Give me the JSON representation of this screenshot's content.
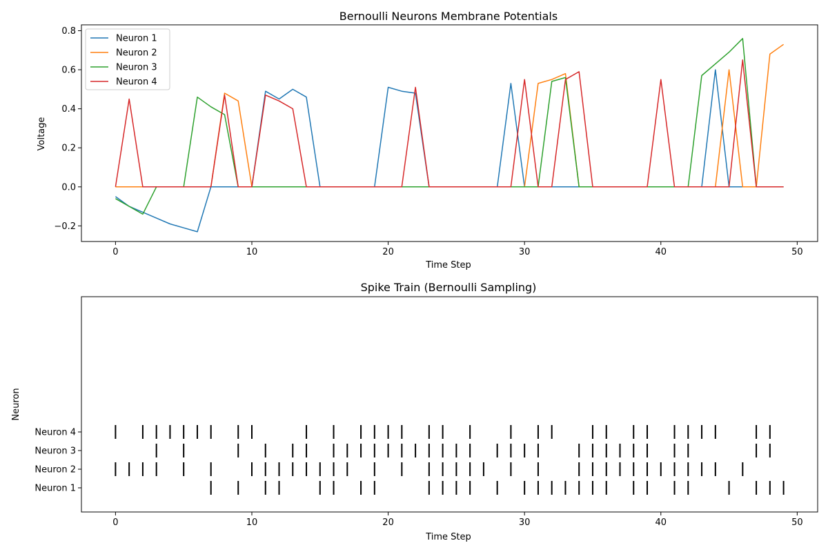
{
  "chart_data": [
    {
      "type": "line",
      "title": "Bernoulli Neurons Membrane Potentials",
      "xlabel": "Time Step",
      "ylabel": "Voltage",
      "xlim": [
        -2.5,
        51.5
      ],
      "ylim": [
        -0.28,
        0.83
      ],
      "xticks": [
        0,
        10,
        20,
        30,
        40,
        50
      ],
      "yticks": [
        -0.2,
        0.0,
        0.2,
        0.4,
        0.6,
        0.8
      ],
      "legend": "top-left",
      "grid": false,
      "series": [
        {
          "name": "Neuron 1",
          "color": "#1f77b4",
          "x": [
            0,
            1,
            2,
            3,
            4,
            5,
            6,
            7,
            8,
            9,
            10,
            11,
            12,
            13,
            14,
            15,
            16,
            17,
            18,
            19,
            20,
            21,
            22,
            23,
            24,
            25,
            26,
            27,
            28,
            29,
            30,
            31,
            32,
            33,
            34,
            35,
            36,
            37,
            38,
            39,
            40,
            41,
            42,
            43,
            44,
            45,
            46,
            47,
            48,
            49
          ],
          "values": [
            -0.05,
            -0.1,
            -0.13,
            -0.16,
            -0.19,
            -0.21,
            -0.23,
            0.0,
            0.0,
            0.0,
            0.0,
            0.49,
            0.45,
            0.5,
            0.46,
            0.0,
            0.0,
            0.0,
            0.0,
            0.0,
            0.51,
            0.49,
            0.48,
            0.0,
            0.0,
            0.0,
            0.0,
            0.0,
            0.0,
            0.53,
            0.0,
            0.0,
            0.0,
            0.0,
            0.0,
            0.0,
            0.0,
            0.0,
            0.0,
            0.0,
            0.0,
            0.0,
            0.0,
            0.0,
            0.6,
            0.0,
            0.0,
            0.0,
            0.0,
            0.0
          ]
        },
        {
          "name": "Neuron 2",
          "color": "#ff7f0e",
          "x": [
            0,
            1,
            2,
            3,
            4,
            5,
            6,
            7,
            8,
            9,
            10,
            11,
            12,
            13,
            14,
            15,
            16,
            17,
            18,
            19,
            20,
            21,
            22,
            23,
            24,
            25,
            26,
            27,
            28,
            29,
            30,
            31,
            32,
            33,
            34,
            35,
            36,
            37,
            38,
            39,
            40,
            41,
            42,
            43,
            44,
            45,
            46,
            47,
            48,
            49
          ],
          "values": [
            0.0,
            0.0,
            0.0,
            0.0,
            0.0,
            0.0,
            0.0,
            0.0,
            0.48,
            0.44,
            0.0,
            0.0,
            0.0,
            0.0,
            0.0,
            0.0,
            0.0,
            0.0,
            0.0,
            0.0,
            0.0,
            0.0,
            0.0,
            0.0,
            0.0,
            0.0,
            0.0,
            0.0,
            0.0,
            0.0,
            0.0,
            0.53,
            0.55,
            0.58,
            0.0,
            0.0,
            0.0,
            0.0,
            0.0,
            0.0,
            0.0,
            0.0,
            0.0,
            0.0,
            0.0,
            0.6,
            0.0,
            0.0,
            0.68,
            0.73
          ]
        },
        {
          "name": "Neuron 3",
          "color": "#2ca02c",
          "x": [
            0,
            1,
            2,
            3,
            4,
            5,
            6,
            7,
            8,
            9,
            10,
            11,
            12,
            13,
            14,
            15,
            16,
            17,
            18,
            19,
            20,
            21,
            22,
            23,
            24,
            25,
            26,
            27,
            28,
            29,
            30,
            31,
            32,
            33,
            34,
            35,
            36,
            37,
            38,
            39,
            40,
            41,
            42,
            43,
            44,
            45,
            46,
            47,
            48,
            49
          ],
          "values": [
            -0.06,
            -0.1,
            -0.14,
            0.0,
            0.0,
            0.0,
            0.46,
            0.41,
            0.37,
            0.0,
            0.0,
            0.0,
            0.0,
            0.0,
            0.0,
            0.0,
            0.0,
            0.0,
            0.0,
            0.0,
            0.0,
            0.0,
            0.0,
            0.0,
            0.0,
            0.0,
            0.0,
            0.0,
            0.0,
            0.0,
            0.0,
            0.0,
            0.54,
            0.56,
            0.0,
            0.0,
            0.0,
            0.0,
            0.0,
            0.0,
            0.0,
            0.0,
            0.0,
            0.57,
            0.63,
            0.69,
            0.76,
            0.0,
            0.0,
            0.0
          ]
        },
        {
          "name": "Neuron 4",
          "color": "#d62728",
          "x": [
            0,
            1,
            2,
            3,
            4,
            5,
            6,
            7,
            8,
            9,
            10,
            11,
            12,
            13,
            14,
            15,
            16,
            17,
            18,
            19,
            20,
            21,
            22,
            23,
            24,
            25,
            26,
            27,
            28,
            29,
            30,
            31,
            32,
            33,
            34,
            35,
            36,
            37,
            38,
            39,
            40,
            41,
            42,
            43,
            44,
            45,
            46,
            47,
            48,
            49
          ],
          "values": [
            0.0,
            0.45,
            0.0,
            0.0,
            0.0,
            0.0,
            0.0,
            0.0,
            0.47,
            0.0,
            0.0,
            0.47,
            0.44,
            0.4,
            0.0,
            0.0,
            0.0,
            0.0,
            0.0,
            0.0,
            0.0,
            0.0,
            0.51,
            0.0,
            0.0,
            0.0,
            0.0,
            0.0,
            0.0,
            0.0,
            0.55,
            0.0,
            0.0,
            0.55,
            0.59,
            0.0,
            0.0,
            0.0,
            0.0,
            0.0,
            0.55,
            0.0,
            0.0,
            0.0,
            0.0,
            0.0,
            0.65,
            0.0,
            0.0,
            0.0
          ]
        }
      ]
    },
    {
      "type": "scatter",
      "title": "Spike Train (Bernoulli Sampling)",
      "xlabel": "Time Step",
      "ylabel": "Neuron",
      "xlim": [
        -2.5,
        51.5
      ],
      "xticks": [
        0,
        10,
        20,
        30,
        40,
        50
      ],
      "grid": false,
      "rows": [
        {
          "name": "Neuron 1",
          "spikes": [
            7,
            9,
            11,
            12,
            15,
            16,
            18,
            19,
            23,
            24,
            25,
            26,
            28,
            30,
            31,
            32,
            33,
            34,
            35,
            36,
            38,
            39,
            41,
            42,
            45,
            47,
            48,
            49
          ]
        },
        {
          "name": "Neuron 2",
          "spikes": [
            0,
            1,
            2,
            3,
            5,
            7,
            10,
            11,
            12,
            13,
            14,
            15,
            16,
            17,
            19,
            21,
            23,
            24,
            25,
            26,
            27,
            29,
            31,
            34,
            35,
            36,
            37,
            38,
            39,
            40,
            41,
            42,
            43,
            44,
            46
          ]
        },
        {
          "name": "Neuron 3",
          "spikes": [
            3,
            5,
            9,
            11,
            13,
            14,
            16,
            17,
            18,
            19,
            20,
            21,
            22,
            23,
            24,
            25,
            26,
            28,
            29,
            30,
            31,
            34,
            35,
            36,
            37,
            38,
            39,
            41,
            42,
            47,
            48
          ]
        },
        {
          "name": "Neuron 4",
          "spikes": [
            0,
            2,
            3,
            4,
            5,
            6,
            7,
            9,
            10,
            14,
            16,
            18,
            19,
            20,
            21,
            23,
            24,
            26,
            29,
            31,
            32,
            35,
            36,
            38,
            39,
            41,
            42,
            43,
            44,
            47,
            48
          ]
        }
      ]
    }
  ]
}
